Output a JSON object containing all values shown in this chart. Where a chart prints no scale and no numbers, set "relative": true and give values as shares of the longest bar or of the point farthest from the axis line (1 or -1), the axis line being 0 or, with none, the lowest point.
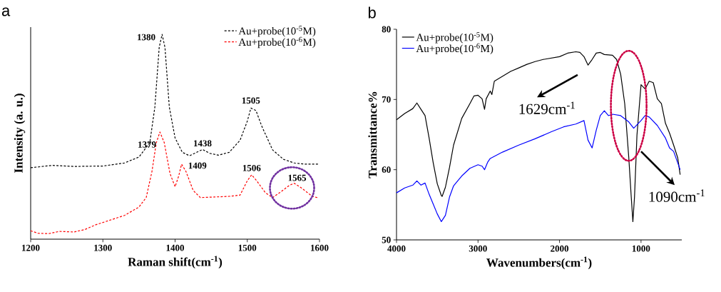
{
  "chart_data": [
    {
      "type": "line",
      "title": "a",
      "xlabel": "Raman shift(cm$^{-1}$)",
      "ylabel": "Intensity (a. u.)",
      "relative": true,
      "xlim": [
        1200,
        1600
      ],
      "xticks": [
        1200,
        1300,
        1400,
        1500,
        1600
      ],
      "legend": "top right",
      "line_style": "dashed",
      "series": [
        {
          "name": "Au+probe(10$^{-5}$M)",
          "color": "#000000",
          "x": [
            1200,
            1230,
            1260,
            1300,
            1330,
            1350,
            1365,
            1372,
            1378,
            1382,
            1386,
            1392,
            1400,
            1410,
            1420,
            1430,
            1438,
            1448,
            1460,
            1475,
            1490,
            1500,
            1505,
            1512,
            1520,
            1535,
            1550,
            1565,
            1580,
            1600
          ],
          "values": [
            0.349,
            0.36,
            0.355,
            0.357,
            0.372,
            0.401,
            0.471,
            0.645,
            0.936,
            1.0,
            0.936,
            0.645,
            0.494,
            0.424,
            0.407,
            0.424,
            0.438,
            0.419,
            0.41,
            0.424,
            0.483,
            0.576,
            0.64,
            0.628,
            0.552,
            0.436,
            0.39,
            0.372,
            0.366,
            0.366
          ]
        },
        {
          "name": "Au+probe(10$^{-6}$M)",
          "color": "#ff0000",
          "x": [
            1200,
            1210,
            1225,
            1240,
            1260,
            1275,
            1290,
            1310,
            1330,
            1350,
            1360,
            1368,
            1374,
            1379,
            1385,
            1393,
            1400,
            1405,
            1409,
            1415,
            1425,
            1435,
            1455,
            1475,
            1490,
            1500,
            1506,
            1513,
            1525,
            1535,
            1545,
            1558,
            1565,
            1575,
            1590,
            1597
          ],
          "values": [
            0.041,
            0.029,
            0.027,
            0.038,
            0.035,
            0.047,
            0.07,
            0.093,
            0.116,
            0.157,
            0.203,
            0.331,
            0.471,
            0.523,
            0.471,
            0.32,
            0.256,
            0.308,
            0.366,
            0.331,
            0.238,
            0.203,
            0.206,
            0.209,
            0.215,
            0.285,
            0.314,
            0.285,
            0.227,
            0.203,
            0.227,
            0.262,
            0.273,
            0.25,
            0.209,
            0.203
          ]
        }
      ],
      "annotations": [
        {
          "text": "1380",
          "x": 1380,
          "y": 1.0
        },
        {
          "text": "1438",
          "x": 1438,
          "y": 0.438
        },
        {
          "text": "1505",
          "x": 1505,
          "y": 0.64
        },
        {
          "text": "1379",
          "x": 1379,
          "y": 0.523
        },
        {
          "text": "1409",
          "x": 1409,
          "y": 0.366
        },
        {
          "text": "1506",
          "x": 1506,
          "y": 0.314
        },
        {
          "text": "1565",
          "x": 1565,
          "y": 0.273
        }
      ]
    },
    {
      "type": "line",
      "title": "b",
      "xlabel": "Wavenumbers(cm$^{-1}$)",
      "ylabel": "Transmittance%",
      "xlim": [
        4000,
        500
      ],
      "xticks": [
        4000,
        3000,
        2000,
        1000
      ],
      "ylim": [
        50,
        80
      ],
      "yticks": [
        50,
        60,
        70,
        80
      ],
      "legend": "top left",
      "line_style": "solid",
      "series": [
        {
          "name": "Au+probe(10$^{-5}$M)",
          "color": "#000000",
          "x": [
            4000,
            3900,
            3800,
            3750,
            3700,
            3650,
            3600,
            3550,
            3500,
            3450,
            3440,
            3400,
            3350,
            3300,
            3200,
            3100,
            3050,
            3000,
            2950,
            2920,
            2900,
            2850,
            2830,
            2800,
            2700,
            2600,
            2500,
            2400,
            2300,
            2200,
            2000,
            1900,
            1800,
            1750,
            1700,
            1650,
            1600,
            1550,
            1500,
            1450,
            1350,
            1300,
            1250,
            1200,
            1150,
            1120,
            1100,
            1080,
            1050,
            1000,
            950,
            900,
            850,
            800,
            750,
            700,
            650,
            600,
            550,
            520
          ],
          "values": [
            67.1,
            68.0,
            68.7,
            69.5,
            68.6,
            67.7,
            64.5,
            61.0,
            58.0,
            56.3,
            56.2,
            57.5,
            60.3,
            63.5,
            67.3,
            69.4,
            70.5,
            70.6,
            70.1,
            68.6,
            70.1,
            71.2,
            70.7,
            72.6,
            73.3,
            74.0,
            74.5,
            75.0,
            75.4,
            75.7,
            76.1,
            76.6,
            76.8,
            76.7,
            76.1,
            74.9,
            75.7,
            76.6,
            76.7,
            76.4,
            76.3,
            75.7,
            73.6,
            69.4,
            61.7,
            56.1,
            52.6,
            56.1,
            64.9,
            72.1,
            71.5,
            72.6,
            72.4,
            70.1,
            69.4,
            66.6,
            65.2,
            63.5,
            61.7,
            59.3
          ]
        },
        {
          "name": "Au+probe(10$^{-6}$M)",
          "color": "#0000ff",
          "x": [
            4000,
            3900,
            3800,
            3750,
            3700,
            3650,
            3600,
            3550,
            3500,
            3450,
            3400,
            3350,
            3300,
            3200,
            3100,
            3000,
            2950,
            2920,
            2880,
            2850,
            2700,
            2500,
            2300,
            2100,
            1950,
            1800,
            1700,
            1650,
            1600,
            1550,
            1500,
            1450,
            1400,
            1350,
            1250,
            1150,
            1090,
            1000,
            950,
            900,
            800,
            700,
            650,
            600,
            520
          ],
          "values": [
            56.7,
            57.4,
            57.8,
            58.4,
            57.8,
            58.1,
            56.5,
            55.1,
            53.7,
            52.6,
            53.5,
            56.1,
            57.7,
            59.1,
            60.2,
            60.7,
            60.5,
            60.0,
            61.1,
            61.6,
            62.5,
            63.5,
            64.4,
            65.4,
            66.1,
            66.5,
            67.0,
            64.2,
            63.1,
            65.6,
            67.7,
            68.4,
            67.7,
            67.9,
            67.7,
            66.8,
            65.9,
            67.0,
            67.7,
            67.5,
            66.3,
            64.5,
            63.1,
            62.6,
            60.0
          ]
        }
      ],
      "annotations": [
        "1629cm$^{-1}$",
        "1090cm$^{-1}$"
      ]
    }
  ]
}
